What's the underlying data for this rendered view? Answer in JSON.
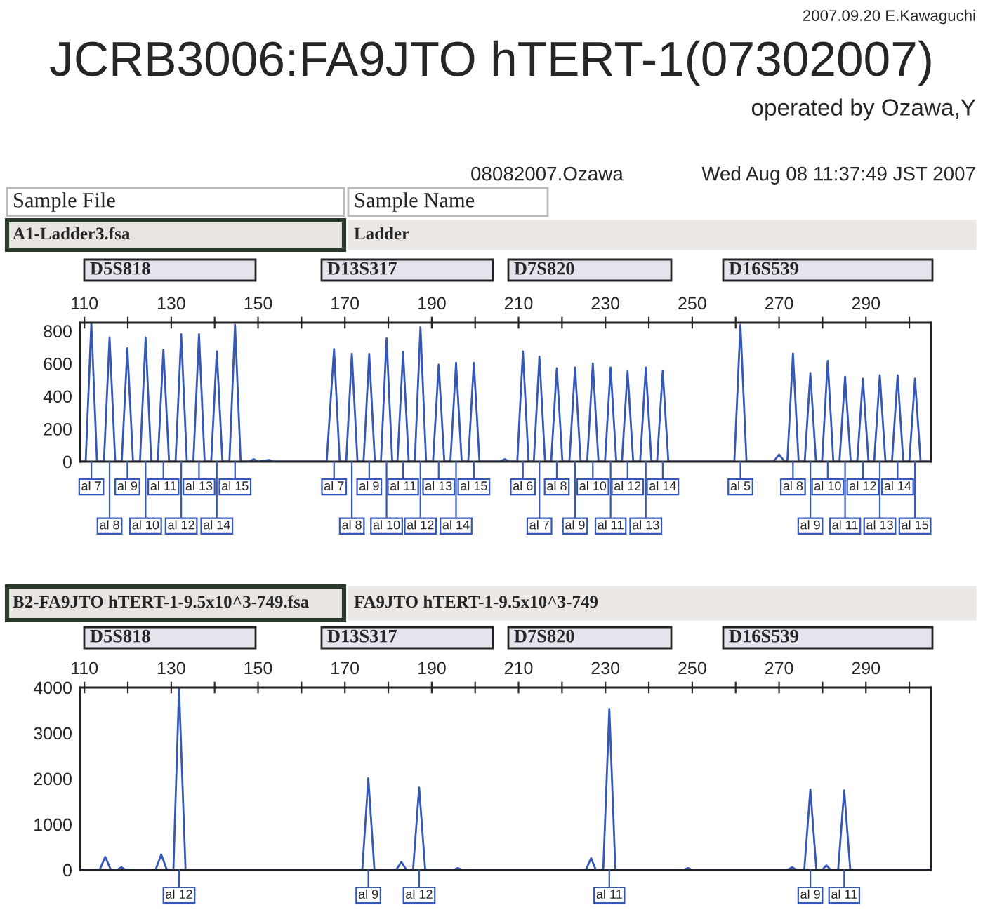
{
  "chart_data": [
    {
      "type": "line",
      "title": "JCRB3006:FA9JTO hTERT-1(07302007)",
      "subtitle": "operated by Ozawa,Y",
      "x": [
        109.0,
        110.3,
        111.6,
        112.9,
        114.5,
        115.8,
        117.1,
        118.6,
        119.9,
        121.2,
        122.8,
        124.1,
        125.4,
        126.9,
        128.2,
        129.5,
        131.0,
        132.3,
        133.6,
        135.1,
        136.4,
        137.7,
        139.2,
        140.5,
        141.8,
        143.4,
        144.7,
        146.0,
        148.0,
        149.0,
        150.0,
        152.5,
        153.5,
        165.8,
        167.5,
        168.8,
        170.3,
        171.6,
        172.9,
        174.3,
        175.6,
        176.9,
        178.3,
        179.6,
        180.9,
        182.1,
        183.4,
        184.7,
        186.1,
        187.4,
        188.7,
        190.3,
        191.6,
        192.9,
        194.3,
        195.6,
        196.9,
        198.4,
        199.7,
        201.0,
        205.8,
        206.8,
        207.8,
        209.7,
        211.0,
        212.3,
        213.5,
        214.8,
        216.1,
        217.5,
        218.8,
        220.1,
        221.7,
        223.0,
        224.3,
        225.8,
        227.1,
        228.4,
        229.9,
        231.2,
        232.5,
        233.8,
        235.1,
        236.4,
        238.0,
        239.3,
        240.6,
        241.9,
        243.2,
        244.5,
        259.7,
        261.1,
        262.5,
        268.7,
        270.0,
        271.3,
        271.9,
        273.2,
        274.5,
        275.9,
        277.2,
        278.5,
        279.9,
        281.2,
        282.5,
        283.9,
        285.2,
        286.5,
        288.0,
        289.3,
        290.6,
        291.9,
        293.2,
        294.5,
        296.0,
        297.3,
        298.6,
        300.0,
        301.3,
        302.6,
        304.5
      ],
      "values": [
        0,
        0,
        850,
        0,
        0,
        760,
        0,
        0,
        694,
        0,
        0,
        760,
        0,
        0,
        685,
        0,
        0,
        780,
        0,
        0,
        780,
        0,
        0,
        674,
        0,
        0,
        837,
        0,
        0,
        15,
        0,
        10,
        0,
        0,
        688,
        0,
        0,
        659,
        0,
        0,
        659,
        0,
        0,
        754,
        0,
        0,
        671,
        0,
        0,
        823,
        0,
        0,
        593,
        0,
        0,
        605,
        0,
        0,
        605,
        0,
        0,
        15,
        0,
        0,
        674,
        0,
        0,
        642,
        0,
        0,
        571,
        0,
        0,
        576,
        0,
        0,
        600,
        0,
        0,
        576,
        0,
        0,
        553,
        0,
        0,
        576,
        0,
        0,
        553,
        0,
        0,
        837,
        0,
        0,
        43,
        0,
        0,
        662,
        0,
        0,
        542,
        0,
        0,
        616,
        0,
        0,
        519,
        0,
        0,
        507,
        0,
        0,
        528,
        0,
        0,
        528,
        0,
        0,
        507,
        0,
        0
      ],
      "color": "#3557b7",
      "xlim": [
        109,
        305
      ],
      "ylim": [
        0,
        850
      ],
      "xticks": [
        110,
        {
          "value": 120,
          "label": null
        },
        130,
        {
          "value": 140,
          "label": null
        },
        150,
        {
          "value": 160,
          "label": null
        },
        170,
        {
          "value": 180,
          "label": null
        },
        190,
        {
          "value": 200,
          "label": null
        },
        210,
        {
          "value": 220,
          "label": null
        },
        230,
        {
          "value": 240,
          "label": null
        },
        250,
        {
          "value": 260,
          "label": null
        },
        270,
        {
          "value": 280,
          "label": null
        },
        290,
        {
          "value": 300,
          "label": null
        }
      ],
      "yticks": [
        0,
        200,
        400,
        600,
        800
      ],
      "grid": false,
      "legend": false,
      "annotations": [
        "2007.09.20 E.Kawaguchi",
        "08082007.Ozawa",
        "Wed Aug 08 11:37:49 JST 2007",
        "Sample File",
        "Sample Name",
        "A1-Ladder3.fsa",
        "Ladder",
        "D5S818",
        "D13S317",
        "D7S820",
        "D16S539",
        {
          "text": "al 7",
          "x": 111.6,
          "y": 0
        },
        {
          "text": "al 8",
          "x": 115.8,
          "y": 0
        },
        {
          "text": "al 9",
          "x": 119.9,
          "y": 0
        },
        {
          "text": "al 10",
          "x": 124.1,
          "y": 0
        },
        {
          "text": "al 11",
          "x": 128.2,
          "y": 0
        },
        {
          "text": "al 12",
          "x": 132.3,
          "y": 0
        },
        {
          "text": "al 13",
          "x": 136.4,
          "y": 0
        },
        {
          "text": "al 14",
          "x": 140.5,
          "y": 0
        },
        {
          "text": "al 15",
          "x": 144.7,
          "y": 0
        },
        {
          "text": "al 7",
          "x": 167.5,
          "y": 0
        },
        {
          "text": "al 8",
          "x": 171.6,
          "y": 0
        },
        {
          "text": "al 9",
          "x": 175.6,
          "y": 0
        },
        {
          "text": "al 10",
          "x": 179.6,
          "y": 0
        },
        {
          "text": "al 11",
          "x": 183.4,
          "y": 0
        },
        {
          "text": "al 12",
          "x": 187.4,
          "y": 0
        },
        {
          "text": "al 13",
          "x": 191.6,
          "y": 0
        },
        {
          "text": "al 14",
          "x": 195.6,
          "y": 0
        },
        {
          "text": "al 15",
          "x": 199.7,
          "y": 0
        },
        {
          "text": "al 6",
          "x": 211.0,
          "y": 0
        },
        {
          "text": "al 7",
          "x": 214.8,
          "y": 0
        },
        {
          "text": "al 8",
          "x": 218.8,
          "y": 0
        },
        {
          "text": "al 9",
          "x": 223.0,
          "y": 0
        },
        {
          "text": "al 10",
          "x": 227.1,
          "y": 0
        },
        {
          "text": "al 11",
          "x": 231.2,
          "y": 0
        },
        {
          "text": "al 12",
          "x": 235.1,
          "y": 0
        },
        {
          "text": "al 13",
          "x": 239.3,
          "y": 0
        },
        {
          "text": "al 14",
          "x": 243.2,
          "y": 0
        },
        {
          "text": "al 5",
          "x": 261.1,
          "y": 0
        },
        {
          "text": "al 8",
          "x": 273.2,
          "y": 0
        },
        {
          "text": "al 9",
          "x": 277.2,
          "y": 0
        },
        {
          "text": "al 10",
          "x": 281.2,
          "y": 0
        },
        {
          "text": "al 11",
          "x": 285.2,
          "y": 0
        },
        {
          "text": "al 12",
          "x": 289.3,
          "y": 0
        },
        {
          "text": "al 13",
          "x": 293.2,
          "y": 0
        },
        {
          "text": "al 14",
          "x": 297.3,
          "y": 0
        },
        {
          "text": "al 15",
          "x": 301.3,
          "y": 0
        }
      ]
    },
    {
      "type": "line",
      "x": [
        109.5,
        113.5,
        114.8,
        116.1,
        117.5,
        118.5,
        119.5,
        126.4,
        127.7,
        129.0,
        130.5,
        131.8,
        133.3,
        140.0,
        174.0,
        175.4,
        176.8,
        181.8,
        183.0,
        184.2,
        185.7,
        187.1,
        188.5,
        195.0,
        196.0,
        197.0,
        225.5,
        226.7,
        227.8,
        229.5,
        230.9,
        232.3,
        248.0,
        249.0,
        250.0,
        272.0,
        273.0,
        274.0,
        275.8,
        277.2,
        278.6,
        279.9,
        280.9,
        281.9,
        283.6,
        285.0,
        286.4,
        304.5
      ],
      "values": [
        0,
        0,
        286,
        0,
        0,
        60,
        0,
        0,
        337,
        0,
        0,
        3980,
        0,
        0,
        0,
        2010,
        0,
        0,
        173,
        0,
        0,
        1805,
        0,
        0,
        40,
        0,
        0,
        257,
        0,
        0,
        3530,
        0,
        0,
        40,
        0,
        0,
        60,
        0,
        0,
        1765,
        0,
        0,
        100,
        0,
        0,
        1745,
        0,
        0
      ],
      "color": "#3557b7",
      "xlim": [
        109,
        305
      ],
      "ylim": [
        0,
        4000
      ],
      "xticks": [
        110,
        {
          "value": 120,
          "label": null
        },
        130,
        {
          "value": 140,
          "label": null
        },
        150,
        {
          "value": 160,
          "label": null
        },
        170,
        {
          "value": 180,
          "label": null
        },
        190,
        {
          "value": 200,
          "label": null
        },
        210,
        {
          "value": 220,
          "label": null
        },
        230,
        {
          "value": 240,
          "label": null
        },
        250,
        {
          "value": 260,
          "label": null
        },
        270,
        {
          "value": 280,
          "label": null
        },
        290,
        {
          "value": 300,
          "label": null
        }
      ],
      "yticks": [
        0,
        1000,
        2000,
        3000,
        4000
      ],
      "grid": false,
      "legend": false,
      "annotations": [
        "B2-FA9JTO hTERT-1-9.5x10^3-749.fsa",
        "FA9JTO hTERT-1-9.5x10^3-749",
        "D5S818",
        "D13S317",
        "D7S820",
        "D16S539",
        {
          "text": "al 12",
          "x": 131.8,
          "y": 0
        },
        {
          "text": "al 9",
          "x": 175.4,
          "y": 0
        },
        {
          "text": "al 12",
          "x": 187.1,
          "y": 0
        },
        {
          "text": "al 11",
          "x": 230.9,
          "y": 0
        },
        {
          "text": "al 9",
          "x": 277.2,
          "y": 0
        },
        {
          "text": "al 11",
          "x": 285.0,
          "y": 0
        }
      ]
    }
  ]
}
